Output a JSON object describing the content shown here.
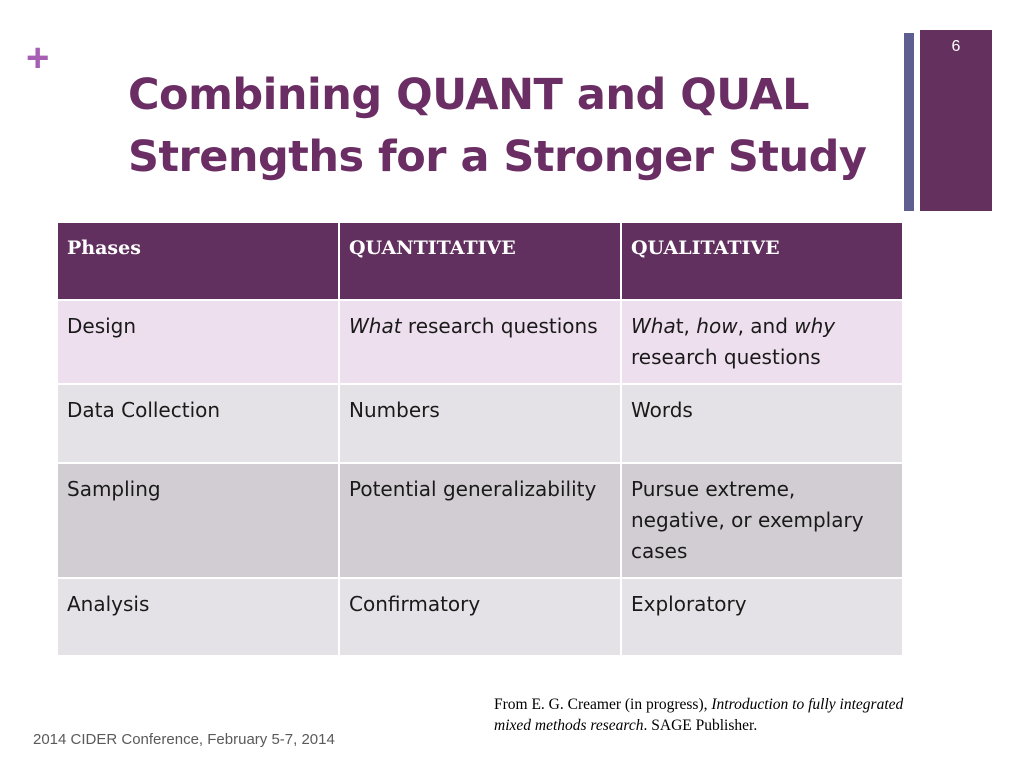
{
  "slide": {
    "plus_glyph": "+",
    "number": "6",
    "title_line1": "Combining QUANT and QUAL",
    "title_line2": "Strengths for a Stronger Study",
    "colors": {
      "accent": "#64305e",
      "accent_thin": "#5e5f90",
      "title": "#6a2d64",
      "plus": "#a65fb3"
    }
  },
  "table": {
    "headers": [
      "Phases",
      "QUANTITATIVE",
      "QUALITATIVE"
    ],
    "rows": [
      {
        "phase": "Design",
        "quant": {
          "em": "What",
          "rest": " research questions"
        },
        "qual": {
          "em1": "Wha",
          "plain1": "t, ",
          "em2": "how",
          "plain2": ", and ",
          "em3": "why",
          "plain3": " research questions"
        }
      },
      {
        "phase": "Data Collection",
        "quant": "Numbers",
        "qual": "Words"
      },
      {
        "phase": "Sampling",
        "quant": "Potential generalizability",
        "qual": "Pursue extreme, negative, or exemplary cases"
      },
      {
        "phase": "Analysis",
        "quant": "Confirmatory",
        "qual": "Exploratory"
      }
    ]
  },
  "citation": {
    "prefix": "From E. G. Creamer (in progress)",
    "comma": ", ",
    "book_title": "Introduction to fully integrated mixed methods research",
    "suffix": ". SAGE Publisher."
  },
  "footer": "2014 CIDER Conference, February 5-7, 2014"
}
